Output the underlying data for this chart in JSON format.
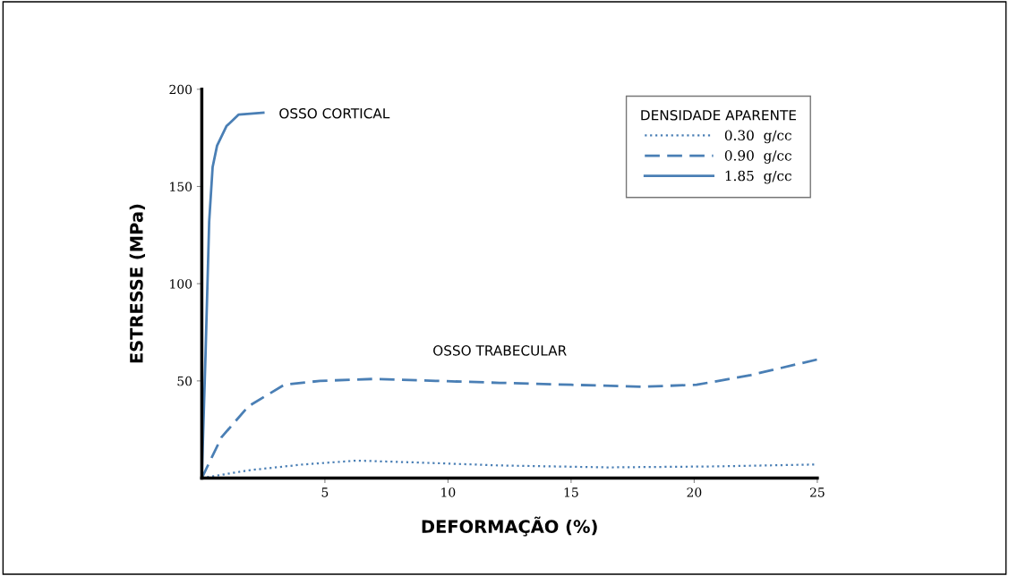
{
  "chart_data": {
    "type": "line",
    "xlabel": "DEFORMAÇÃO (%)",
    "ylabel": "ESTRESSE (MPa)",
    "legend_title": "DENSIDADE APARENTE",
    "legend": "top right",
    "grid": false,
    "marker": "none",
    "xlim": [
      0,
      25
    ],
    "ylim": [
      0,
      200
    ],
    "xticks": [
      5,
      10,
      15,
      20,
      25
    ],
    "yticks": [
      50,
      100,
      150,
      200
    ],
    "annotations": [
      "OSSO CORTICAL",
      "OSSO TRABECULAR"
    ],
    "series": [
      {
        "name": "0.30  g/cc",
        "color": "#4a7fb5",
        "line_style": "dotted",
        "x": [
          0,
          1.9,
          4.1,
          6.3,
          8.8,
          12.1,
          16.5,
          20.8,
          25
        ],
        "values": [
          0,
          4,
          7,
          9,
          8,
          6.5,
          5.5,
          6,
          7
        ]
      },
      {
        "name": "0.90  g/cc",
        "color": "#4a7fb5",
        "line_style": "dashed",
        "x": [
          0,
          0.8,
          1.9,
          3.35,
          4.8,
          7,
          9.5,
          12.1,
          15,
          17.9,
          20.1,
          22.3,
          25
        ],
        "values": [
          0,
          21,
          37,
          48,
          50,
          51,
          50,
          49,
          48,
          47,
          48,
          53,
          61
        ]
      },
      {
        "name": "1.85  g/cc",
        "color": "#4a7fb5",
        "line_style": "solid",
        "x": [
          0,
          0.15,
          0.3,
          0.44,
          0.62,
          1.0,
          1.5,
          2.5
        ],
        "values": [
          0,
          63,
          132,
          160,
          171,
          181,
          187,
          188
        ]
      }
    ]
  }
}
